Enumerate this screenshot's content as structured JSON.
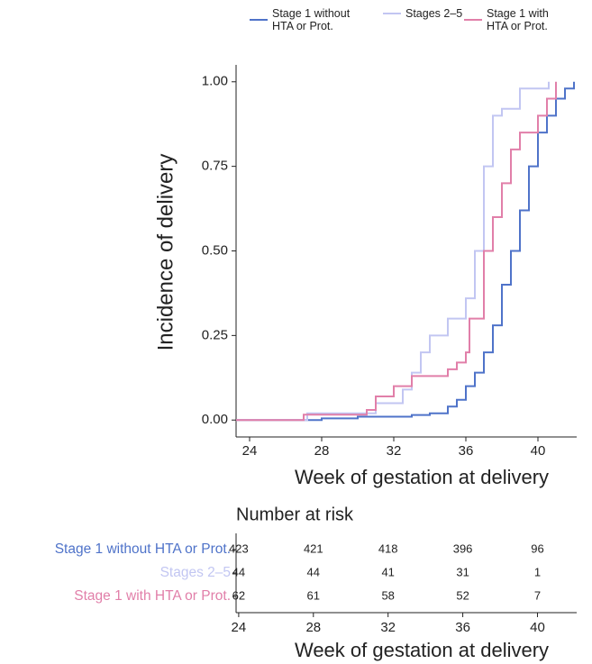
{
  "chart_data": {
    "type": "step",
    "xlabel": "Week of gestation at delivery",
    "ylabel": "Incidence of delivery",
    "xlim": [
      23.25,
      42.15
    ],
    "xticks": [
      24,
      28,
      32,
      36,
      40
    ],
    "ylim": [
      -0.05,
      1.05
    ],
    "yticks": [
      {
        "value": 0,
        "label": "0.00"
      },
      {
        "value": 0.25,
        "label": "0.25"
      },
      {
        "value": 0.5,
        "label": "0.50"
      },
      {
        "value": 0.75,
        "label": "0.75"
      },
      {
        "value": 1,
        "label": "1.00"
      }
    ],
    "series": [
      {
        "name": "Stage 1 without HTA or Prot.",
        "color": "#4f73c9",
        "x": [
          23.25,
          28,
          30,
          33,
          34,
          35,
          35.5,
          36,
          36.5,
          37,
          37.5,
          38,
          38.5,
          39,
          39.5,
          40,
          40.5,
          41,
          41.5,
          42
        ],
        "values": [
          0,
          0.005,
          0.01,
          0.015,
          0.02,
          0.04,
          0.06,
          0.1,
          0.14,
          0.2,
          0.28,
          0.4,
          0.5,
          0.62,
          0.75,
          0.85,
          0.9,
          0.95,
          0.98,
          1.0
        ]
      },
      {
        "name": "Stages 2–5",
        "color": "#c2c6f2",
        "x": [
          23.25,
          27.2,
          31,
          32.5,
          33,
          33.5,
          34,
          35,
          36,
          36.5,
          37,
          37.5,
          38,
          39,
          40.6
        ],
        "values": [
          0,
          0.02,
          0.05,
          0.09,
          0.14,
          0.2,
          0.25,
          0.3,
          0.36,
          0.5,
          0.75,
          0.9,
          0.92,
          0.98,
          1.0
        ]
      },
      {
        "name": "Stage 1 with HTA or Prot.",
        "color": "#e17fa9",
        "x": [
          23.25,
          27,
          30.5,
          31,
          32,
          33,
          35,
          35.5,
          36,
          36.2,
          37,
          37.5,
          38,
          38.5,
          39,
          40,
          40.5,
          41
        ],
        "values": [
          0,
          0.016,
          0.03,
          0.07,
          0.1,
          0.13,
          0.15,
          0.17,
          0.2,
          0.3,
          0.5,
          0.6,
          0.7,
          0.8,
          0.85,
          0.9,
          0.95,
          1.0
        ]
      }
    ],
    "risk_table": {
      "title": "Number at risk",
      "xlabel": "Week of gestation at delivery",
      "xlim": [
        23.86,
        42.1
      ],
      "xticks": [
        24,
        28,
        32,
        36,
        40
      ],
      "rows": [
        {
          "values": [
            423,
            421,
            418,
            396,
            96
          ]
        },
        {
          "values": [
            44,
            44,
            41,
            31,
            1
          ]
        },
        {
          "values": [
            62,
            61,
            58,
            52,
            7
          ]
        }
      ]
    }
  }
}
